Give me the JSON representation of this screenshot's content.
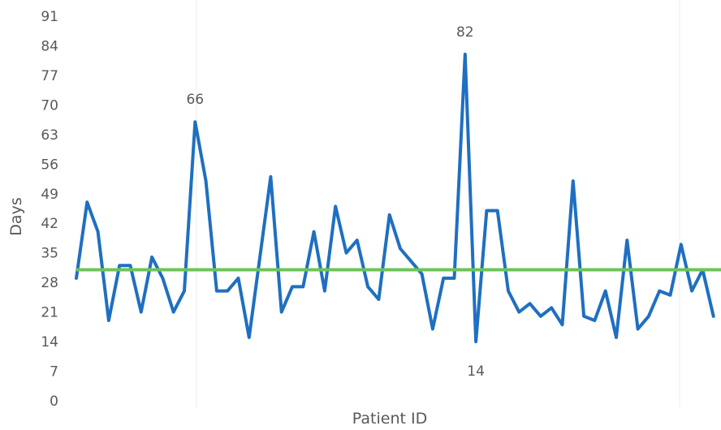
{
  "chart_data": {
    "type": "line",
    "title": "",
    "xlabel": "Patient ID",
    "ylabel": "Days",
    "ylim": [
      0,
      91
    ],
    "yticks": [
      "0",
      "7",
      "14",
      "21",
      "28",
      "35",
      "42",
      "49",
      "56",
      "63",
      "70",
      "77",
      "84",
      "91"
    ],
    "grid": "vertical lines only, light gray",
    "legend": "none",
    "series": [
      {
        "values": [
          29,
          47,
          40,
          19,
          32,
          32,
          21,
          34,
          29,
          21,
          26,
          66,
          52,
          26,
          26,
          29,
          15,
          34,
          53,
          21,
          27,
          27,
          40,
          26,
          46,
          35,
          38,
          27,
          24,
          44,
          36,
          33,
          30,
          17,
          29,
          29,
          82,
          14,
          45,
          45,
          26,
          21,
          23,
          20,
          22,
          18,
          52,
          20,
          19,
          26,
          15,
          38,
          17,
          20,
          26,
          25,
          37,
          26,
          31,
          20
        ],
        "color": "#1f6fc1"
      },
      {
        "values": [
          31,
          31
        ],
        "color": "#6cc45a"
      }
    ],
    "data_labels": [
      {
        "index": 11,
        "text": "66"
      },
      {
        "index": 36,
        "text": "82"
      },
      {
        "index": 37,
        "text": "14"
      }
    ]
  }
}
